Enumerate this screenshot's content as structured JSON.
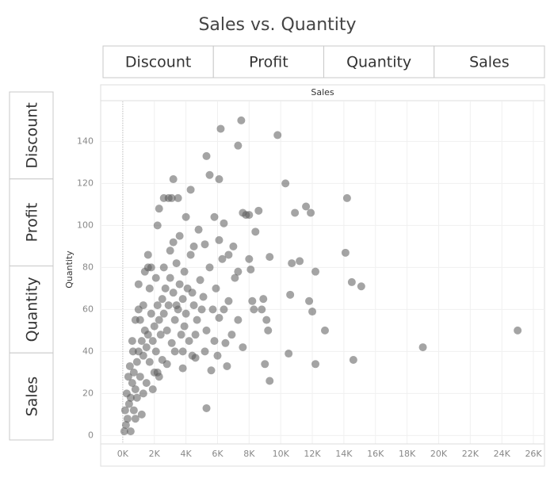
{
  "chart_data": {
    "type": "scatter",
    "title": "Sales vs. Quantity",
    "x_label": "Sales",
    "y_label": "Quantity",
    "color": "#5a5a5a",
    "xlim": [
      -1400,
      26700
    ],
    "ylim": [
      -4,
      159
    ],
    "xticks": [
      {
        "value": 0,
        "label": "0K"
      },
      {
        "value": 2000,
        "label": "2K"
      },
      {
        "value": 4000,
        "label": "4K"
      },
      {
        "value": 6000,
        "label": "6K"
      },
      {
        "value": 8000,
        "label": "8K"
      },
      {
        "value": 10000,
        "label": "10K"
      },
      {
        "value": 12000,
        "label": "12K"
      },
      {
        "value": 14000,
        "label": "14K"
      },
      {
        "value": 16000,
        "label": "16K"
      },
      {
        "value": 18000,
        "label": "18K"
      },
      {
        "value": 20000,
        "label": "20K"
      },
      {
        "value": 22000,
        "label": "22K"
      },
      {
        "value": 24000,
        "label": "24K"
      },
      {
        "value": 26000,
        "label": "26K"
      }
    ],
    "yticks": [
      0,
      20,
      40,
      60,
      80,
      100,
      120,
      140
    ],
    "grid": true,
    "x": [
      25000,
      19000,
      14600,
      14200,
      14100,
      14500,
      15100,
      12800,
      12200,
      12200,
      11800,
      12000,
      11900,
      11600,
      10900,
      11200,
      10700,
      10600,
      10500,
      10300,
      9800,
      9300,
      9000,
      9300,
      9200,
      9100,
      7500,
      7300,
      6200,
      5300,
      5500,
      6100,
      4300,
      3200,
      5300,
      8600,
      8400,
      8000,
      7800,
      7600,
      8000,
      8200,
      8300,
      8800,
      8900,
      8100,
      7300,
      7000,
      6700,
      6400,
      6100,
      5800,
      5200,
      4800,
      4500,
      4000,
      3500,
      3100,
      3200,
      2900,
      2600,
      2300,
      2200,
      1600,
      1800,
      1600,
      1400,
      1000,
      6600,
      5600,
      4600,
      4400,
      3800,
      2200,
      100,
      200,
      300,
      150,
      400,
      250,
      500,
      600,
      350,
      700,
      800,
      900,
      450,
      1000,
      1100,
      1200,
      650,
      1300,
      1400,
      1500,
      1100,
      1600,
      1700,
      1800,
      1900,
      2000,
      2100,
      2200,
      2300,
      2400,
      2500,
      2600,
      2700,
      2800,
      2900,
      3000,
      3100,
      3200,
      3300,
      3400,
      3500,
      3600,
      3700,
      3800,
      3900,
      4000,
      4100,
      4200,
      4300,
      4500,
      4700,
      4900,
      5100,
      5300,
      5500,
      5700,
      5900,
      6100,
      6300,
      6500,
      6700,
      6900,
      7100,
      7300,
      7600,
      1200,
      900,
      1500,
      2000,
      2500,
      600,
      800,
      1300,
      1700,
      2100,
      2600,
      3000,
      3600,
      1000,
      500,
      800,
      1300,
      700,
      1900,
      2300,
      2800,
      3300,
      3800,
      4600,
      5200,
      5800,
      6000,
      6400,
      5000,
      4400,
      3900,
      3400
    ],
    "values": [
      50,
      42,
      36,
      113,
      87,
      73,
      71,
      50,
      34,
      78,
      64,
      59,
      106,
      109,
      106,
      83,
      82,
      67,
      39,
      120,
      143,
      26,
      34,
      85,
      50,
      55,
      150,
      138,
      146,
      133,
      124,
      122,
      117,
      122,
      13,
      107,
      97,
      105,
      105,
      106,
      84,
      64,
      60,
      60,
      65,
      79,
      78,
      90,
      86,
      101,
      93,
      104,
      91,
      98,
      90,
      104,
      113,
      113,
      92,
      113,
      113,
      108,
      100,
      86,
      80,
      80,
      78,
      72,
      33,
      31,
      37,
      38,
      40,
      30,
      2,
      5,
      8,
      12,
      15,
      20,
      18,
      25,
      28,
      30,
      22,
      35,
      33,
      40,
      28,
      45,
      40,
      38,
      50,
      42,
      55,
      48,
      35,
      58,
      45,
      52,
      40,
      62,
      55,
      48,
      65,
      58,
      70,
      50,
      62,
      75,
      44,
      68,
      55,
      82,
      60,
      72,
      48,
      65,
      78,
      58,
      70,
      45,
      86,
      62,
      55,
      74,
      66,
      50,
      80,
      60,
      70,
      56,
      84,
      44,
      64,
      48,
      75,
      55,
      42,
      10,
      18,
      25,
      30,
      36,
      45,
      55,
      62,
      70,
      75,
      80,
      88,
      95,
      60,
      2,
      8,
      20,
      12,
      22,
      28,
      34,
      40,
      32,
      48,
      40,
      45,
      38,
      60,
      60,
      68,
      52,
      62
    ]
  },
  "controls": {
    "columns": [
      "Discount",
      "Profit",
      "Quantity",
      "Sales"
    ],
    "rows": [
      "Discount",
      "Profit",
      "Quantity",
      "Sales"
    ]
  }
}
